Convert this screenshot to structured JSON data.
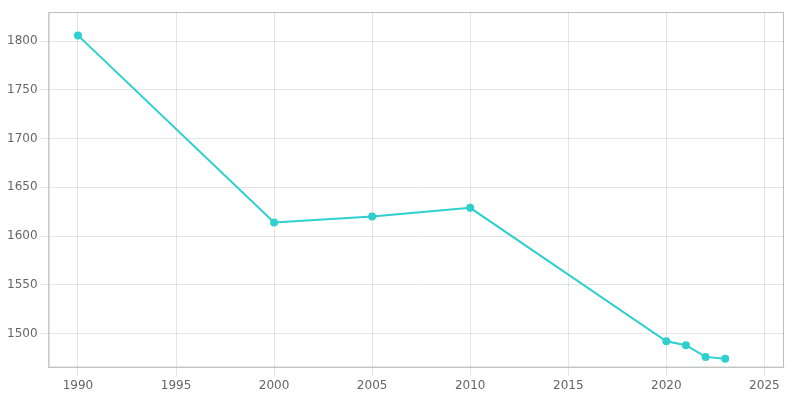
{
  "chart_data": {
    "type": "line",
    "x": [
      1990,
      2000,
      2005,
      2010,
      2020,
      2021,
      2022,
      2023
    ],
    "values": [
      1806,
      1614,
      1620,
      1629,
      1492,
      1488,
      1476,
      1474
    ],
    "color": "#2ecfcf",
    "marker": "circle",
    "xlim": [
      1988.5,
      2026
    ],
    "xticks": [
      1990,
      1995,
      2000,
      2005,
      2010,
      2015,
      2020,
      2025
    ],
    "ylim": [
      1465,
      1830
    ],
    "yticks": [
      1500,
      1550,
      1600,
      1650,
      1700,
      1750,
      1800
    ],
    "grid": true
  }
}
